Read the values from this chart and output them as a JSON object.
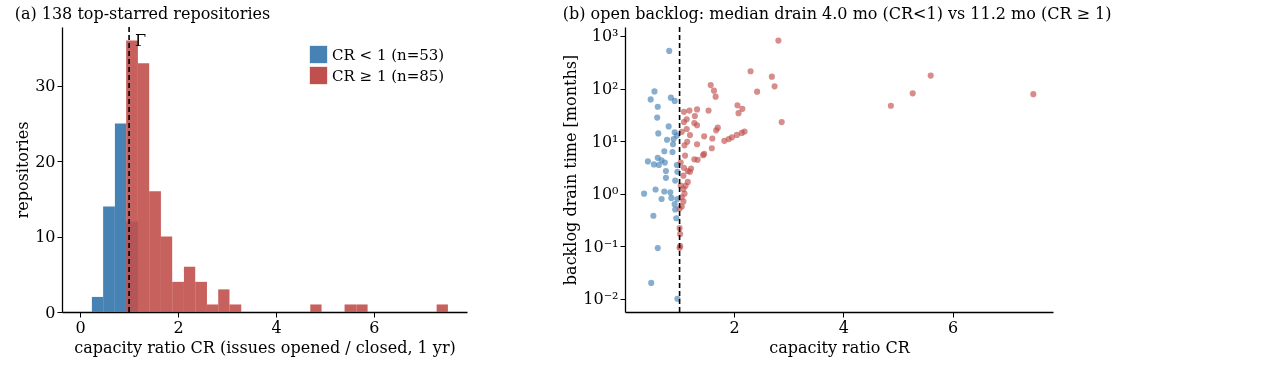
{
  "chart_data": [
    {
      "type": "histogram",
      "title": "(a)  138 top-starred repositories",
      "xlabel": "capacity ratio  CR (issues opened / closed, 1 yr)",
      "ylabel": "repositories",
      "bins": [
        0.24,
        0.47,
        0.71,
        0.94,
        1.18,
        1.41,
        1.65,
        1.88,
        2.12,
        2.35,
        2.59,
        2.82,
        3.05,
        3.29,
        3.52,
        3.76,
        3.99,
        4.23,
        4.46,
        4.7,
        4.93,
        5.17,
        5.4,
        5.64,
        5.87,
        6.1,
        6.34,
        6.57,
        6.81,
        7.04,
        7.28,
        7.51
      ],
      "series": [
        {
          "name": "CR < 1  (n=53)",
          "color": "#4682b4",
          "values": [
            2,
            14,
            25,
            12,
            0,
            0,
            0,
            0,
            0,
            0,
            0,
            0,
            0,
            0,
            0,
            0,
            0,
            0,
            0,
            0,
            0,
            0,
            0,
            0,
            0,
            0,
            0,
            0,
            0,
            0,
            0
          ]
        },
        {
          "name": "CR ≥ 1  (n=85)",
          "color": "#c0504d",
          "values": [
            0,
            0,
            0,
            36,
            33,
            16,
            10,
            4,
            6,
            4,
            1,
            3,
            1,
            0,
            0,
            0,
            0,
            0,
            0,
            1,
            0,
            0,
            1,
            1,
            0,
            0,
            0,
            0,
            0,
            0,
            1
          ]
        }
      ],
      "xlim": [
        -0.37,
        7.9
      ],
      "xticks": [
        0,
        2,
        4,
        6
      ],
      "ylim": [
        0,
        37.8
      ],
      "yticks": [
        0,
        10,
        20,
        30
      ],
      "ref_lines": [
        {
          "axis": "x",
          "value": 1,
          "color": "#000000",
          "line_style": "dashed"
        }
      ],
      "annotations": [
        {
          "text": "Γ",
          "x": 1.12,
          "y": 36
        }
      ],
      "legend": "top right",
      "grid": false
    },
    {
      "type": "scatter",
      "title": "(b)  open backlog: median drain 4.0 mo (CR<1) vs 11.2 mo (CR ≥ 1)",
      "xlabel": "capacity ratio  CR",
      "ylabel": "backlog drain time  [months]",
      "series": [
        {
          "color": "#4682b4",
          "x": [
            0.81,
            0.54,
            0.47,
            0.6,
            0.84,
            0.91,
            0.59,
            0.8,
            0.61,
            0.91,
            0.95,
            0.77,
            0.84,
            0.89,
            0.87,
            0.72,
            0.42,
            0.6,
            0.67,
            0.53,
            0.62,
            0.73,
            0.75,
            0.95,
            0.75,
            0.92,
            0.96,
            0.35,
            0.56,
            0.72,
            0.83,
            0.67,
            0.85,
            0.91,
            0.92,
            0.94,
            0.52,
            0.6,
            0.48,
            0.96,
            0.96,
            0.88
          ],
          "values": [
            519,
            88,
            62,
            45,
            67,
            58,
            28,
            19,
            14,
            14.7,
            12.7,
            10.6,
            null,
            10.9,
            6.2,
            6.4,
            4.1,
            4.8,
            4.3,
            3.6,
            3.5,
            3.9,
            2.7,
            3.5,
            2.0,
            1.77,
            2.6,
            1.0,
            1.2,
            1.1,
            1.06,
            0.79,
            0.83,
            0.63,
            0.5,
            0.34,
            0.38,
            0.092,
            0.02,
            0.01,
            0.79,
            8.7
          ]
        },
        {
          "color": "#c0504d",
          "x": [
            2.81,
            2.3,
            2.69,
            2.74,
            2.42,
            5.6,
            5.27,
            7.48,
            4.87,
            2.87,
            1.57,
            1.63,
            1.66,
            2.06,
            2.15,
            2.08,
            1.53,
            1.32,
            1.18,
            1.08,
            1.28,
            1.13,
            1.08,
            1.27,
            1.32,
            1.7,
            1.67,
            1.13,
            1.04,
            1.19,
            1.45,
            1.6,
            1.82,
            1.9,
            1.96,
            2.05,
            2.14,
            2.19,
            1.14,
            1.32,
            1.09,
            1.59,
            1.45,
            1.43,
            1.1,
            1.27,
            1.33,
            1.02,
            1.21,
            1.15,
            1.19,
            1.08,
            1.07,
            1.15,
            1.11,
            1.07,
            1.02,
            1.09,
            1.04,
            1.07,
            1.04,
            1.0,
            1.0,
            1.01,
            1.01,
            1.0
          ],
          "values": [
            815,
            213,
            168,
            110,
            87,
            176,
            81,
            78,
            47,
            23,
            116,
            91,
            70,
            48,
            41,
            34,
            38,
            40,
            38,
            36,
            30,
            26,
            23,
            22,
            20,
            18,
            16,
            17,
            15,
            13,
            12.3,
            11.2,
            10.1,
            10.9,
            11.8,
            13.1,
            14.3,
            15.2,
            9.7,
            8.7,
            8.3,
            7.3,
            5.7,
            5.4,
            5.3,
            4.5,
            4.4,
            3.9,
            3.0,
            2.7,
            2.6,
            3.1,
            2.2,
            1.67,
            1.41,
            1.23,
            1.43,
            1.0,
            0.85,
            0.71,
            0.57,
            0.52,
            0.22,
            0.17,
            0.1,
            0.093
          ]
        }
      ],
      "xlim": [
        0,
        7.84
      ],
      "xticks": [
        2,
        4,
        6
      ],
      "ylim": [
        0.0056,
        1480
      ],
      "log": "y",
      "yticks": [
        {
          "value": 0.01,
          "label": "10⁻²"
        },
        {
          "value": 0.1,
          "label": "10⁻¹"
        },
        {
          "value": 1,
          "label": "10⁰"
        },
        {
          "value": 10,
          "label": "10¹"
        },
        {
          "value": 100,
          "label": "10²"
        },
        {
          "value": 1000,
          "label": "10³"
        }
      ],
      "ref_lines": [
        {
          "axis": "x",
          "value": 1,
          "color": "#000000",
          "line_style": "dashed"
        }
      ],
      "marker": "circle",
      "grid": false
    }
  ]
}
